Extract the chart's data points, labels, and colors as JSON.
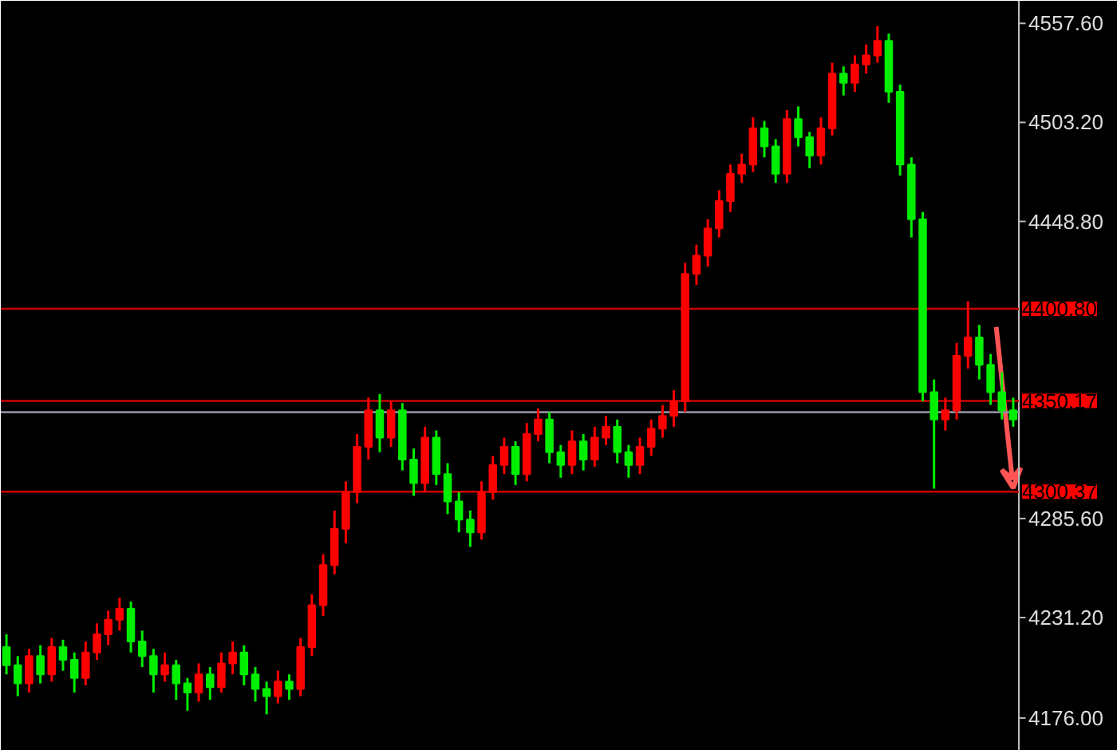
{
  "chart_data": {
    "type": "candlestick",
    "categories": [
      null,
      null,
      null,
      null,
      null,
      null,
      null,
      null,
      null,
      null,
      null,
      null,
      null,
      null,
      null,
      null,
      null,
      null,
      null,
      null,
      null,
      null,
      null,
      null,
      null,
      null,
      null,
      null,
      null,
      null,
      null,
      null,
      null,
      null,
      null,
      null,
      null,
      null,
      null,
      null,
      null,
      null,
      null,
      null,
      null,
      null,
      null,
      null,
      null,
      null,
      null,
      null,
      null,
      null,
      null,
      null,
      null,
      null,
      null,
      null,
      null,
      null,
      null,
      null,
      null,
      null,
      null,
      null,
      null,
      null,
      null,
      null,
      null,
      null,
      null,
      null,
      null,
      null,
      null,
      null,
      null,
      null,
      null,
      null,
      null,
      null,
      null,
      null,
      null,
      null
    ],
    "ohlc": [
      [
        4215,
        4222,
        4200,
        4205
      ],
      [
        4205,
        4210,
        4188,
        4195
      ],
      [
        4195,
        4214,
        4190,
        4210
      ],
      [
        4210,
        4216,
        4195,
        4200
      ],
      [
        4200,
        4220,
        4196,
        4215
      ],
      [
        4215,
        4219,
        4202,
        4208
      ],
      [
        4208,
        4212,
        4190,
        4198
      ],
      [
        4198,
        4218,
        4194,
        4212
      ],
      [
        4212,
        4228,
        4208,
        4222
      ],
      [
        4222,
        4235,
        4216,
        4230
      ],
      [
        4230,
        4242,
        4224,
        4236
      ],
      [
        4236,
        4240,
        4212,
        4218
      ],
      [
        4218,
        4224,
        4204,
        4210
      ],
      [
        4210,
        4214,
        4190,
        4200
      ],
      [
        4200,
        4212,
        4196,
        4205
      ],
      [
        4205,
        4208,
        4186,
        4195
      ],
      [
        4195,
        4198,
        4180,
        4190
      ],
      [
        4190,
        4206,
        4185,
        4200
      ],
      [
        4200,
        4204,
        4186,
        4193
      ],
      [
        4193,
        4212,
        4190,
        4206
      ],
      [
        4206,
        4218,
        4200,
        4212
      ],
      [
        4212,
        4216,
        4194,
        4200
      ],
      [
        4200,
        4204,
        4185,
        4192
      ],
      [
        4192,
        4196,
        4178,
        4188
      ],
      [
        4188,
        4202,
        4184,
        4196
      ],
      [
        4196,
        4200,
        4186,
        4192
      ],
      [
        4192,
        4220,
        4188,
        4215
      ],
      [
        4215,
        4244,
        4210,
        4238
      ],
      [
        4238,
        4266,
        4232,
        4260
      ],
      [
        4260,
        4290,
        4255,
        4280
      ],
      [
        4280,
        4306,
        4272,
        4300
      ],
      [
        4300,
        4332,
        4294,
        4325
      ],
      [
        4325,
        4352,
        4318,
        4345
      ],
      [
        4345,
        4354,
        4322,
        4330
      ],
      [
        4330,
        4350,
        4325,
        4345
      ],
      [
        4345,
        4349,
        4312,
        4318
      ],
      [
        4318,
        4324,
        4298,
        4305
      ],
      [
        4305,
        4336,
        4300,
        4330
      ],
      [
        4330,
        4334,
        4304,
        4310
      ],
      [
        4310,
        4316,
        4288,
        4295
      ],
      [
        4295,
        4300,
        4278,
        4285
      ],
      [
        4285,
        4290,
        4270,
        4278
      ],
      [
        4278,
        4306,
        4274,
        4300
      ],
      [
        4300,
        4320,
        4296,
        4315
      ],
      [
        4315,
        4330,
        4310,
        4325
      ],
      [
        4325,
        4328,
        4304,
        4310
      ],
      [
        4310,
        4338,
        4306,
        4332
      ],
      [
        4332,
        4346,
        4328,
        4340
      ],
      [
        4340,
        4344,
        4316,
        4322
      ],
      [
        4322,
        4326,
        4308,
        4315
      ],
      [
        4315,
        4334,
        4310,
        4328
      ],
      [
        4328,
        4332,
        4312,
        4318
      ],
      [
        4318,
        4336,
        4314,
        4330
      ],
      [
        4330,
        4342,
        4326,
        4336
      ],
      [
        4336,
        4340,
        4316,
        4322
      ],
      [
        4322,
        4326,
        4308,
        4315
      ],
      [
        4315,
        4330,
        4310,
        4325
      ],
      [
        4325,
        4340,
        4320,
        4335
      ],
      [
        4335,
        4348,
        4330,
        4342
      ],
      [
        4342,
        4356,
        4336,
        4350
      ],
      [
        4350,
        4426,
        4344,
        4420
      ],
      [
        4420,
        4436,
        4414,
        4430
      ],
      [
        4430,
        4450,
        4424,
        4445
      ],
      [
        4445,
        4466,
        4440,
        4460
      ],
      [
        4460,
        4480,
        4454,
        4475
      ],
      [
        4475,
        4486,
        4470,
        4480
      ],
      [
        4480,
        4506,
        4476,
        4500
      ],
      [
        4500,
        4504,
        4484,
        4490
      ],
      [
        4490,
        4494,
        4470,
        4475
      ],
      [
        4475,
        4510,
        4470,
        4505
      ],
      [
        4505,
        4512,
        4490,
        4495
      ],
      [
        4495,
        4498,
        4478,
        4485
      ],
      [
        4485,
        4506,
        4480,
        4500
      ],
      [
        4500,
        4536,
        4496,
        4530
      ],
      [
        4530,
        4534,
        4518,
        4525
      ],
      [
        4525,
        4540,
        4520,
        4535
      ],
      [
        4535,
        4546,
        4530,
        4540
      ],
      [
        4540,
        4556,
        4536,
        4548
      ],
      [
        4548,
        4552,
        4514,
        4520
      ],
      [
        4520,
        4524,
        4474,
        4480
      ],
      [
        4480,
        4484,
        4440,
        4450
      ],
      [
        4450,
        4454,
        4350,
        4355
      ],
      [
        4355,
        4362,
        4302,
        4340
      ],
      [
        4340,
        4352,
        4334,
        4345
      ],
      [
        4345,
        4382,
        4340,
        4375
      ],
      [
        4375,
        4405,
        4368,
        4385
      ],
      [
        4385,
        4392,
        4362,
        4370
      ],
      [
        4370,
        4376,
        4348,
        4355
      ],
      [
        4355,
        4366,
        4340,
        4345
      ],
      [
        4345,
        4352,
        4336,
        4340
      ]
    ],
    "ylim": [
      4158,
      4570
    ],
    "yticks": [
      {
        "value": 4557.6,
        "label": "4557.60"
      },
      {
        "value": 4503.2,
        "label": "4503.20"
      },
      {
        "value": 4448.8,
        "label": "4448.80"
      },
      {
        "value": 4285.6,
        "label": "4285.60"
      },
      {
        "value": 4231.2,
        "label": "4231.20"
      },
      {
        "value": 4176.0,
        "label": "4176.00"
      }
    ],
    "tick_labels": "y",
    "grid": false,
    "ref_lines": [
      {
        "axis": "y",
        "value": 4400.8,
        "label": "4400.80",
        "color": "#cc0000"
      },
      {
        "axis": "y",
        "value": 4350.17,
        "label": "4350.17",
        "color": "#cc0000"
      },
      {
        "axis": "y",
        "value": 4344,
        "label": null,
        "color": "#8c8c9c"
      },
      {
        "axis": "y",
        "value": 4300.37,
        "label": "4300.37",
        "color": "#cc0000"
      }
    ]
  }
}
